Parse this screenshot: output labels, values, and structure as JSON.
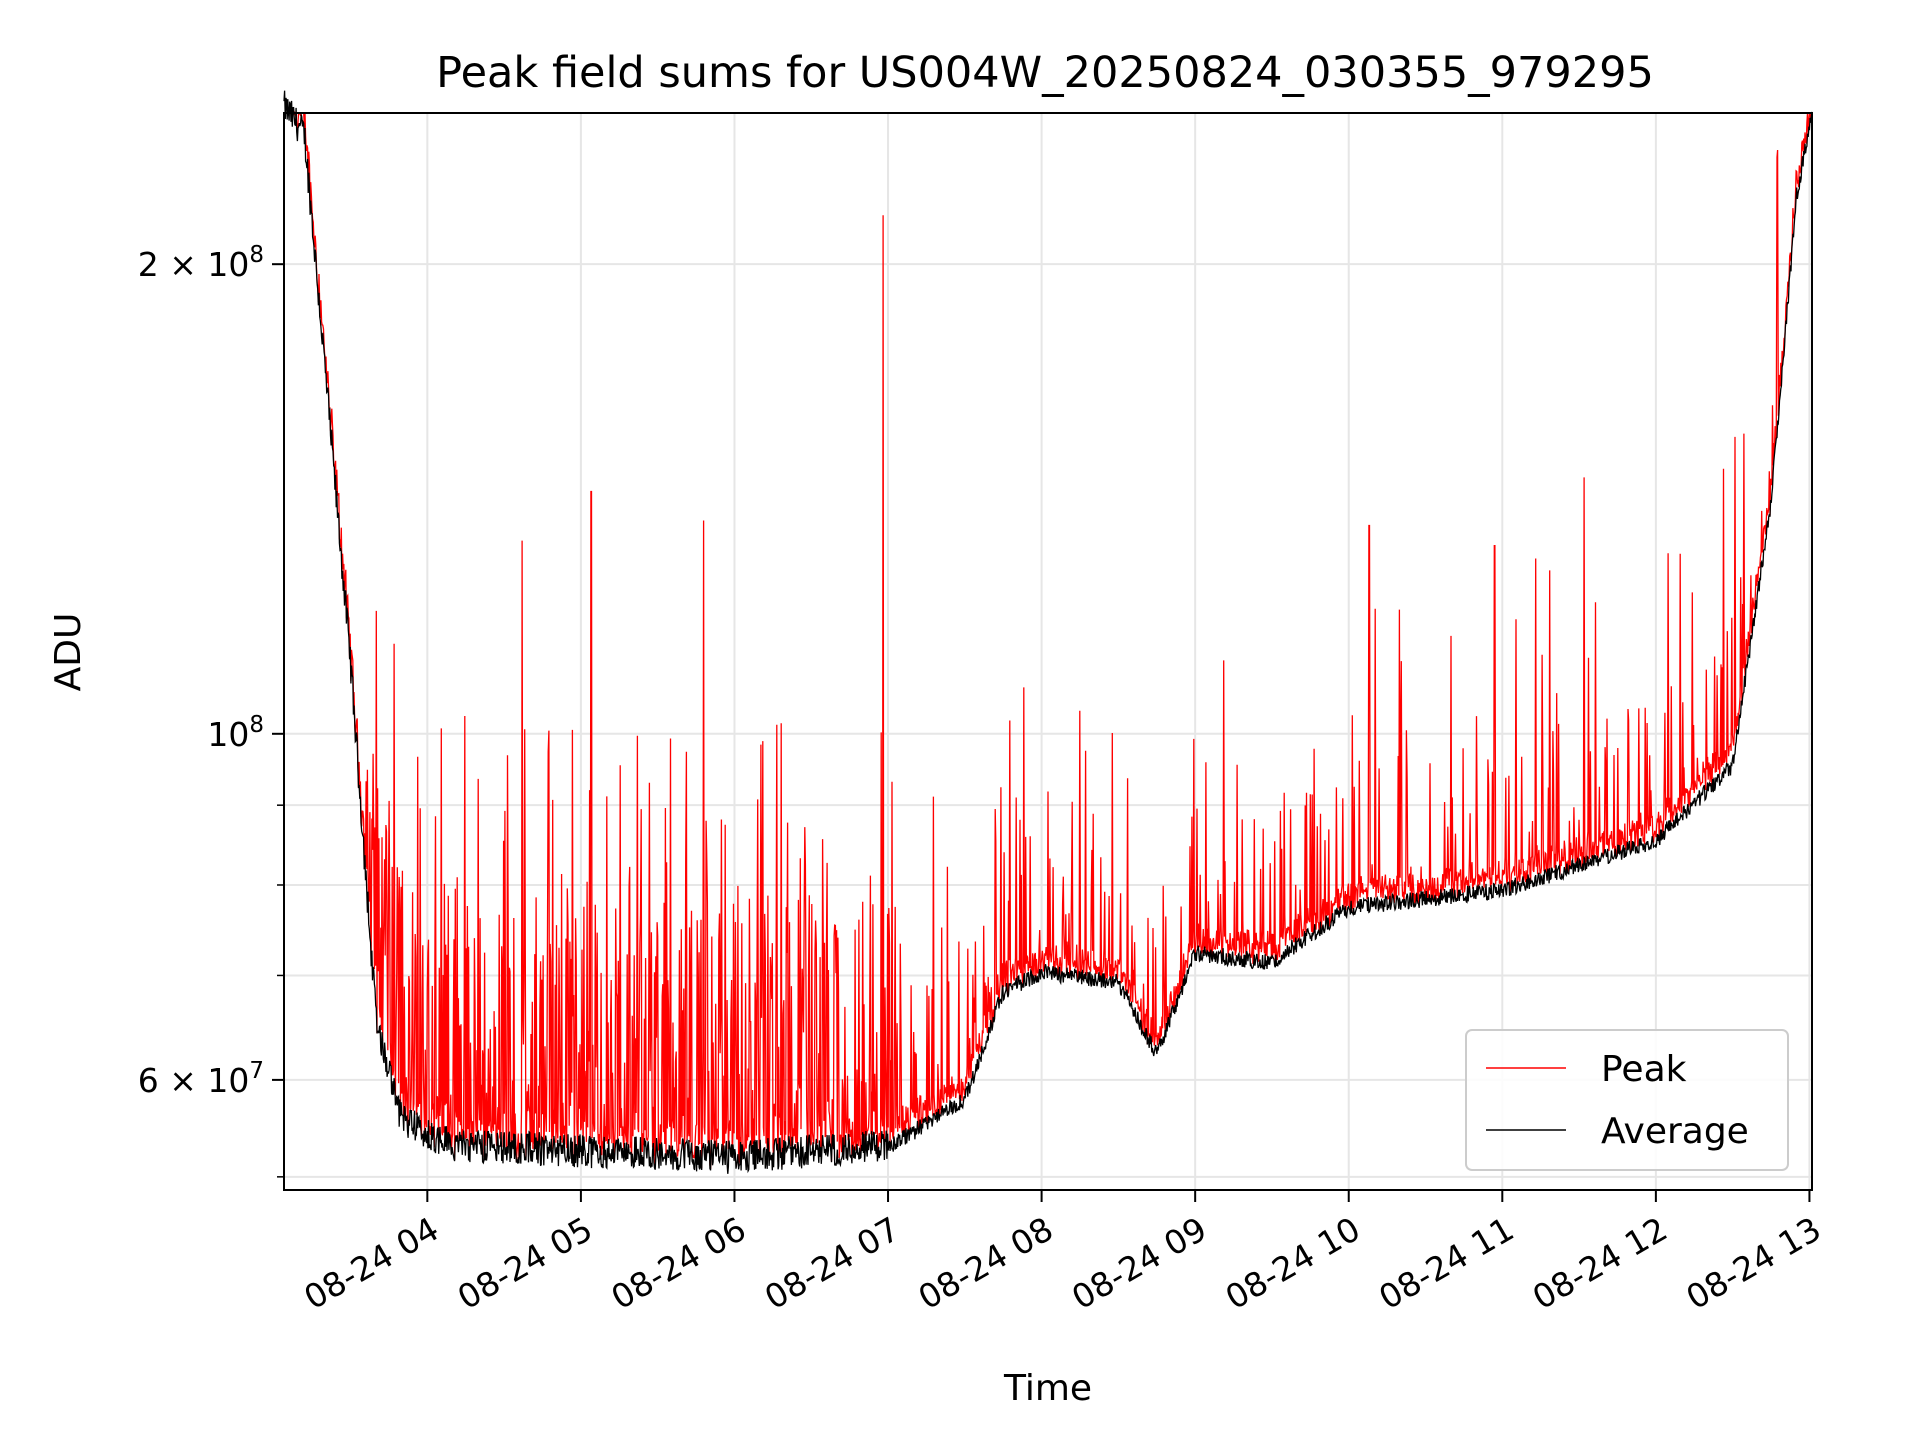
{
  "chart_data": {
    "type": "line",
    "title": "Peak field sums for US004W_20250824_030355_979295",
    "xlabel": "Time",
    "ylabel": "ADU",
    "y_scale": "log",
    "grid": true,
    "legend_placement": "lower-right",
    "x_range": [
      "2025-08-24 03:04",
      "2025-08-24 13:01"
    ],
    "ylim": [
      51000000,
      250000000
    ],
    "x_tick_labels": [
      "08-24 04",
      "08-24 05",
      "08-24 06",
      "08-24 07",
      "08-24 08",
      "08-24 09",
      "08-24 10",
      "08-24 11",
      "08-24 12",
      "08-24 13"
    ],
    "x_ticks": [
      "2025-08-24 04:00",
      "2025-08-24 05:00",
      "2025-08-24 06:00",
      "2025-08-24 07:00",
      "2025-08-24 08:00",
      "2025-08-24 09:00",
      "2025-08-24 10:00",
      "2025-08-24 11:00",
      "2025-08-24 12:00",
      "2025-08-24 13:00"
    ],
    "y_ticks": [
      {
        "value": 200000000,
        "mantissa": "2",
        "times": "×",
        "base": "10",
        "exp": "8"
      },
      {
        "value": 100000000,
        "mantissa": "",
        "times": "",
        "base": "10",
        "exp": "8"
      },
      {
        "value": 60000000,
        "mantissa": "6",
        "times": "×",
        "base": "10",
        "exp": "7"
      }
    ],
    "y_minor_ticks": [
      52000000,
      70000000,
      80000000,
      90000000
    ],
    "series": [
      {
        "name": "Peak",
        "color": "#ff0000",
        "spikes": [
          {
            "t": "2025-08-24 05:04",
            "v": 143000000
          },
          {
            "t": "2025-08-24 05:48",
            "v": 137000000
          },
          {
            "t": "2025-08-24 04:37",
            "v": 133000000
          },
          {
            "t": "2025-08-24 06:58",
            "v": 215000000
          },
          {
            "t": "2025-08-24 10:08",
            "v": 136000000
          },
          {
            "t": "2025-08-24 10:57",
            "v": 132000000
          },
          {
            "t": "2025-08-24 11:32",
            "v": 146000000
          },
          {
            "t": "2025-08-24 12:31",
            "v": 155000000
          }
        ]
      },
      {
        "name": "Average",
        "color": "#000000",
        "profile": [
          {
            "t": "2025-08-24 03:04",
            "v": 250000000
          },
          {
            "t": "2025-08-24 03:12",
            "v": 240000000
          },
          {
            "t": "2025-08-24 03:20",
            "v": 170000000
          },
          {
            "t": "2025-08-24 03:30",
            "v": 110000000
          },
          {
            "t": "2025-08-24 03:40",
            "v": 65000000
          },
          {
            "t": "2025-08-24 03:50",
            "v": 56000000
          },
          {
            "t": "2025-08-24 04:10",
            "v": 54000000
          },
          {
            "t": "2025-08-24 05:00",
            "v": 53500000
          },
          {
            "t": "2025-08-24 06:00",
            "v": 53000000
          },
          {
            "t": "2025-08-24 07:00",
            "v": 54000000
          },
          {
            "t": "2025-08-24 07:30",
            "v": 58000000
          },
          {
            "t": "2025-08-24 07:45",
            "v": 68000000
          },
          {
            "t": "2025-08-24 08:00",
            "v": 70000000
          },
          {
            "t": "2025-08-24 08:30",
            "v": 69000000
          },
          {
            "t": "2025-08-24 08:45",
            "v": 62000000
          },
          {
            "t": "2025-08-24 09:00",
            "v": 72000000
          },
          {
            "t": "2025-08-24 09:30",
            "v": 71000000
          },
          {
            "t": "2025-08-24 10:00",
            "v": 77000000
          },
          {
            "t": "2025-08-24 11:00",
            "v": 79000000
          },
          {
            "t": "2025-08-24 12:00",
            "v": 85000000
          },
          {
            "t": "2025-08-24 12:30",
            "v": 95000000
          },
          {
            "t": "2025-08-24 12:45",
            "v": 140000000
          },
          {
            "t": "2025-08-24 12:55",
            "v": 220000000
          },
          {
            "t": "2025-08-24 13:01",
            "v": 250000000
          }
        ]
      }
    ]
  }
}
